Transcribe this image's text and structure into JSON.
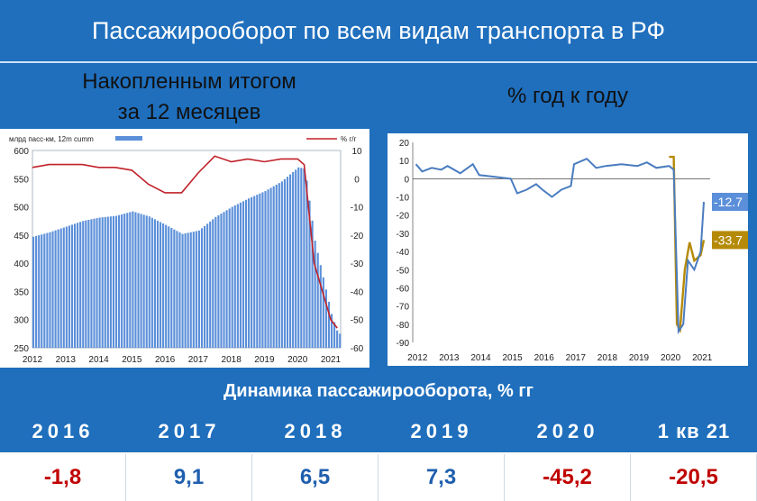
{
  "header": {
    "title": "Пассажирооборот по всем видам транспорта в РФ"
  },
  "subtitles": {
    "left": "Накопленным итогом\nза 12 месяцев",
    "right": "% год к году"
  },
  "colors": {
    "accent": "#1f6fbd",
    "bars": "#5b8fd9",
    "redline": "#c0222a",
    "blueline": "#4a7cc0",
    "goldline": "#b58a07",
    "neg": "#c00000",
    "pos": "#1f5fae"
  },
  "chart_data": [
    {
      "type": "bar",
      "legend": {
        "bars": "млрд пасс-км, 12m cumm",
        "line": "% г/г"
      },
      "x_ticks": [
        "2012",
        "2013",
        "2014",
        "2015",
        "2016",
        "2017",
        "2018",
        "2019",
        "2020",
        "2021"
      ],
      "y_left_ticks": [
        "600",
        "550",
        "500",
        "450",
        "400",
        "350",
        "300",
        "250"
      ],
      "y_left_range": [
        250,
        600
      ],
      "y_right_ticks": [
        "10",
        "0",
        "-10",
        "-20",
        "-30",
        "-40",
        "-50",
        "-60"
      ],
      "y_right_range": [
        -60,
        10
      ],
      "series": [
        {
          "name": "млрд пасс-км, 12m cumm",
          "x": [
            2012,
            2012.5,
            2013,
            2013.5,
            2014,
            2014.5,
            2015,
            2015.5,
            2016,
            2016.5,
            2017,
            2017.5,
            2018,
            2018.5,
            2019,
            2019.5,
            2020,
            2020.2,
            2020.5,
            2021,
            2021.2
          ],
          "values": [
            447,
            455,
            465,
            475,
            481,
            484,
            492,
            483,
            468,
            452,
            458,
            482,
            500,
            515,
            528,
            545,
            570,
            568,
            440,
            310,
            275
          ]
        },
        {
          "name": "% г/г",
          "x": [
            2012,
            2012.5,
            2013,
            2013.5,
            2014,
            2014.5,
            2015,
            2015.5,
            2016,
            2016.5,
            2017,
            2017.5,
            2018,
            2018.5,
            2019,
            2019.5,
            2020,
            2020.2,
            2020.5,
            2021,
            2021.2
          ],
          "values": [
            4,
            5,
            5,
            5,
            4,
            4,
            3,
            -2,
            -5,
            -5,
            2,
            8,
            6,
            7,
            6,
            7,
            7,
            5,
            -30,
            -50,
            -53
          ]
        }
      ]
    },
    {
      "type": "line",
      "x_ticks": [
        "2012",
        "2013",
        "2014",
        "2015",
        "2016",
        "2017",
        "2018",
        "2019",
        "2020",
        "2021"
      ],
      "y_ticks": [
        "20",
        "10",
        "0",
        "-10",
        "-20",
        "-30",
        "-40",
        "-50",
        "-60",
        "-70",
        "-80",
        "-90"
      ],
      "y_range": [
        -90,
        20
      ],
      "series": [
        {
          "x": [
            2012,
            2012.2,
            2012.5,
            2012.8,
            2013,
            2013.4,
            2013.8,
            2014,
            2014.5,
            2015,
            2015.2,
            2015.5,
            2015.8,
            2016,
            2016.3,
            2016.6,
            2016.9,
            2017,
            2017.4,
            2017.7,
            2018,
            2018.5,
            2019,
            2019.3,
            2019.6,
            2020,
            2020.15,
            2020.3,
            2020.45,
            2020.6,
            2020.8,
            2021,
            2021.1
          ],
          "values": [
            8,
            4,
            6,
            5,
            7,
            3,
            8,
            2,
            1,
            0,
            -8,
            -6,
            -3,
            -6,
            -10,
            -6,
            -4,
            8,
            11,
            6,
            7,
            8,
            7,
            9,
            6,
            7,
            5,
            -84,
            -80,
            -45,
            -50,
            -40,
            -12.7
          ]
        },
        {
          "x": [
            2020,
            2020.15,
            2020.25,
            2020.35,
            2020.5,
            2020.65,
            2020.8,
            2021,
            2021.1
          ],
          "values": [
            12,
            12,
            -80,
            -83,
            -50,
            -35,
            -45,
            -42,
            -33.7
          ]
        }
      ],
      "annotations": [
        "-12.7",
        "-33.7"
      ]
    }
  ],
  "table": {
    "title": "Динамика пассажирооборота, % гг",
    "years": [
      "2016",
      "2017",
      "2018",
      "2019",
      "2020",
      "1 кв 21"
    ],
    "values": [
      "-1,8",
      "9,1",
      "6,5",
      "7,3",
      "-45,2",
      "-20,5"
    ]
  }
}
